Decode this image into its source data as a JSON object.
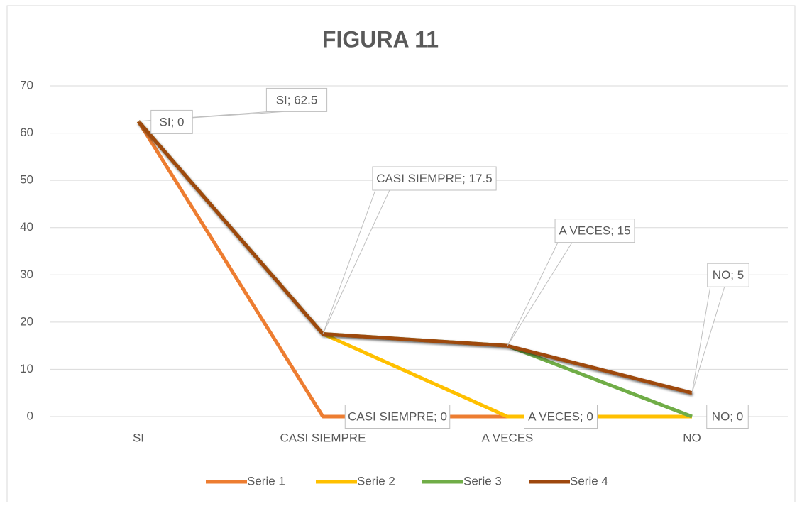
{
  "chart_data": {
    "type": "line",
    "stacked": true,
    "title": "FIGURA 11",
    "categories": [
      "SI",
      "CASI SIEMPRE",
      "A VECES",
      "NO"
    ],
    "series": [
      {
        "name": "Serie 1",
        "color": "#ed7d31",
        "values": [
          62.5,
          0,
          0,
          0
        ],
        "value_labels": [
          "SI; 62.5",
          "CASI SIEMPRE; 0",
          null,
          null
        ]
      },
      {
        "name": "Serie 2",
        "color": "#ffc000",
        "values": [
          0,
          17.5,
          0,
          0
        ],
        "value_labels": [
          "SI; 0",
          "CASI SIEMPRE; 17.5",
          "A VECES; 0",
          null
        ]
      },
      {
        "name": "Serie 3",
        "color": "#70ad47",
        "values": [
          0,
          0,
          15,
          0
        ],
        "value_labels": [
          null,
          null,
          "A VECES; 15",
          "NO; 0"
        ]
      },
      {
        "name": "Serie 4",
        "color": "#9e480e",
        "values": [
          0,
          0,
          0,
          5
        ],
        "value_labels": [
          null,
          null,
          null,
          "NO; 5"
        ]
      }
    ],
    "ylim": [
      0,
      70
    ],
    "yticks": [
      0,
      10,
      20,
      30,
      40,
      50,
      60,
      70
    ],
    "grid": true,
    "legend": "bottom"
  }
}
